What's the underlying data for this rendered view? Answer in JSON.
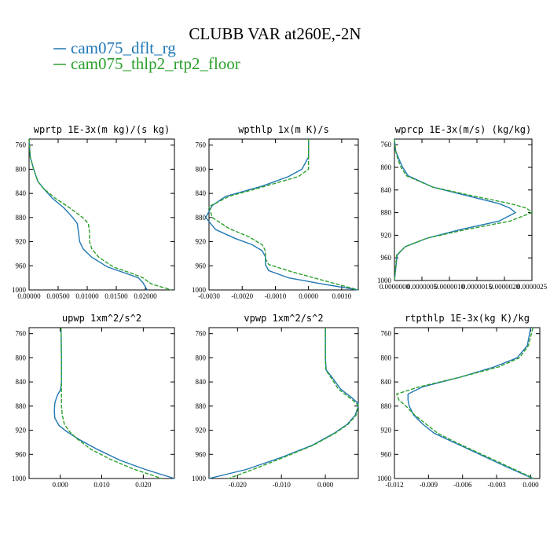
{
  "page": {
    "title": "CLUBB VAR at260E,-2N"
  },
  "legend": [
    {
      "label": "cam075_dflt_rg",
      "color": "#1f77b4",
      "dash": "solid"
    },
    {
      "label": "cam075_thlp2_rtp2_floor",
      "color": "#2ca02c",
      "dash": "dashed"
    }
  ],
  "chart_data": [
    {
      "type": "line",
      "title": "wprtp  1E-3x(m kg)/(s kg)",
      "xlim": [
        0,
        0.025
      ],
      "ylim": [
        1000,
        750
      ],
      "xticks": [
        0,
        0.005,
        0.01,
        0.015,
        0.02
      ],
      "xtick_labels": [
        "0.00000",
        "0.00500",
        "0.01000",
        "0.01500",
        "0.02000"
      ],
      "yticks": [
        760,
        800,
        840,
        880,
        920,
        960,
        1000
      ],
      "ytick_labels": [
        "760",
        "800",
        "840",
        "880",
        "920",
        "960",
        "1000"
      ],
      "series": [
        {
          "name": "cam075_dflt_rg",
          "color": "#1f77b4",
          "dash": "solid",
          "x": [
            0,
            0.0002,
            0.0008,
            0.0015,
            0.0025,
            0.004,
            0.006,
            0.0075,
            0.0083,
            0.0085,
            0.0087,
            0.0093,
            0.0108,
            0.0135,
            0.0165,
            0.0188,
            0.0196,
            0.0203
          ],
          "y": [
            750,
            780,
            800,
            820,
            832,
            848,
            864,
            880,
            890,
            905,
            920,
            932,
            946,
            962,
            972,
            980,
            988,
            1000
          ]
        },
        {
          "name": "cam075_thlp2_rtp2_floor",
          "color": "#2ca02c",
          "dash": "dashed",
          "x": [
            0,
            0.0002,
            0.0008,
            0.0015,
            0.0025,
            0.0045,
            0.007,
            0.0092,
            0.0102,
            0.0104,
            0.0104,
            0.0108,
            0.012,
            0.0145,
            0.0175,
            0.0196,
            0.021,
            0.0245
          ],
          "y": [
            750,
            780,
            800,
            820,
            832,
            848,
            864,
            880,
            890,
            905,
            920,
            932,
            946,
            962,
            972,
            980,
            990,
            1000
          ]
        }
      ]
    },
    {
      "type": "line",
      "title": "wpthlp  1x(m K)/s",
      "xlim": [
        -0.003,
        0.0015
      ],
      "ylim": [
        1000,
        750
      ],
      "xticks": [
        -0.003,
        -0.002,
        -0.001,
        0,
        0.001
      ],
      "xtick_labels": [
        "-0.0030",
        "-0.0020",
        "-0.0010",
        "0.0000",
        "0.0010"
      ],
      "yticks": [
        760,
        800,
        840,
        880,
        920,
        960,
        1000
      ],
      "ytick_labels": [
        "760",
        "800",
        "840",
        "880",
        "920",
        "960",
        "1000"
      ],
      "series": [
        {
          "name": "cam075_dflt_rg",
          "color": "#1f77b4",
          "dash": "solid",
          "x": [
            0,
            0,
            -0.0002,
            -0.0006,
            -0.0014,
            -0.0025,
            -0.0029,
            -0.0031,
            -0.0028,
            -0.0022,
            -0.0017,
            -0.0014,
            -0.0013,
            -0.0013,
            -0.0012,
            -0.0006,
            0.0004,
            0.0015
          ],
          "y": [
            750,
            780,
            800,
            812,
            828,
            845,
            860,
            880,
            900,
            915,
            925,
            935,
            945,
            958,
            968,
            980,
            990,
            1000
          ]
        },
        {
          "name": "cam075_thlp2_rtp2_floor",
          "color": "#2ca02c",
          "dash": "dashed",
          "x": [
            0,
            0,
            0,
            -0.0003,
            -0.0013,
            -0.0024,
            -0.003,
            -0.0029,
            -0.0024,
            -0.0018,
            -0.0014,
            -0.0013,
            -0.0013,
            -0.0012,
            -0.0005,
            0.0005,
            0.0015
          ],
          "y": [
            750,
            780,
            800,
            812,
            828,
            845,
            862,
            880,
            898,
            912,
            925,
            935,
            948,
            958,
            970,
            985,
            1000
          ]
        }
      ]
    },
    {
      "type": "line",
      "title": "wprcp  1E-3x(m/s) (kg/kg)",
      "xlim": [
        0,
        2.5e-06
      ],
      "ylim": [
        1000,
        750
      ],
      "xticks": [
        0,
        5e-07,
        1e-06,
        1.5e-06,
        2e-06,
        2.5e-06
      ],
      "xtick_labels": [
        "0.0000000",
        "0.0000005",
        "0.0000010",
        "0.0000015",
        "0.0000020",
        "0.0000025"
      ],
      "yticks": [
        760,
        800,
        840,
        880,
        920,
        960,
        1000
      ],
      "ytick_labels": [
        "760",
        "800",
        "840",
        "880",
        "920",
        "960",
        "1000"
      ],
      "series": [
        {
          "name": "cam075_dflt_rg",
          "color": "#1f77b4",
          "dash": "solid",
          "x": [
            0,
            2e-08,
            8e-08,
            1.5e-07,
            2.5e-07,
            7e-07,
            1.4e-06,
            1.9e-06,
            2.1e-06,
            2.2e-06,
            1.9e-06,
            1.2e-06,
            6e-07,
            2e-07,
            5e-08,
            0
          ],
          "y": [
            750,
            770,
            785,
            800,
            815,
            835,
            852,
            864,
            872,
            880,
            895,
            910,
            925,
            940,
            955,
            1000
          ]
        },
        {
          "name": "cam075_thlp2_rtp2_floor",
          "color": "#2ca02c",
          "dash": "dashed",
          "x": [
            0,
            2e-08,
            6e-08,
            1.2e-07,
            2.2e-07,
            7e-07,
            1.5e-06,
            2.1e-06,
            2.4e-06,
            2.5e-06,
            2.1e-06,
            1.3e-06,
            6e-07,
            2e-07,
            4e-08,
            0
          ],
          "y": [
            750,
            770,
            785,
            800,
            815,
            835,
            852,
            864,
            872,
            880,
            895,
            910,
            925,
            940,
            955,
            1000
          ]
        }
      ]
    },
    {
      "type": "line",
      "title": "upwp  1xm^2/s^2",
      "xlim": [
        -0.0075,
        0.0275
      ],
      "ylim": [
        1000,
        750
      ],
      "xticks": [
        0,
        0.01,
        0.02
      ],
      "xtick_labels": [
        "0.000",
        "0.010",
        "0.020"
      ],
      "yticks": [
        760,
        800,
        840,
        880,
        920,
        960,
        1000
      ],
      "ytick_labels": [
        "760",
        "800",
        "840",
        "880",
        "920",
        "960",
        "1000"
      ],
      "series": [
        {
          "name": "cam075_dflt_rg",
          "color": "#1f77b4",
          "dash": "solid",
          "x": [
            0.0002,
            0.0003,
            0.0003,
            0.0001,
            -0.0008,
            -0.0013,
            -0.0014,
            -0.0013,
            -0.0003,
            0.0015,
            0.0045,
            0.009,
            0.0145,
            0.0205,
            0.0275
          ],
          "y": [
            750,
            800,
            840,
            852,
            864,
            875,
            888,
            900,
            912,
            922,
            935,
            952,
            970,
            985,
            1000
          ]
        },
        {
          "name": "cam075_thlp2_rtp2_floor",
          "color": "#2ca02c",
          "dash": "dashed",
          "x": [
            0.0002,
            0.0003,
            0.0003,
            0.0003,
            0.0003,
            0.0005,
            0.001,
            0.0022,
            0.0042,
            0.0075,
            0.012,
            0.0175,
            0.0245
          ],
          "y": [
            750,
            800,
            840,
            860,
            880,
            895,
            910,
            922,
            935,
            952,
            968,
            984,
            1000
          ]
        }
      ]
    },
    {
      "type": "line",
      "title": "vpwp  1xm^2/s^2",
      "xlim": [
        -0.0265,
        0.0075
      ],
      "ylim": [
        1000,
        750
      ],
      "xticks": [
        -0.02,
        -0.01,
        0
      ],
      "xtick_labels": [
        "-0.020",
        "-0.010",
        "0.000"
      ],
      "yticks": [
        760,
        800,
        840,
        880,
        920,
        960,
        1000
      ],
      "ytick_labels": [
        "760",
        "800",
        "840",
        "880",
        "920",
        "960",
        "1000"
      ],
      "series": [
        {
          "name": "cam075_dflt_rg",
          "color": "#1f77b4",
          "dash": "solid",
          "x": [
            0,
            0,
            0.0002,
            0.0015,
            0.0035,
            0.006,
            0.0074,
            0.0075,
            0.0068,
            0.005,
            0.002,
            -0.003,
            -0.01,
            -0.018,
            -0.0265
          ],
          "y": [
            750,
            800,
            820,
            832,
            852,
            866,
            875,
            880,
            895,
            910,
            925,
            945,
            965,
            985,
            1000
          ]
        },
        {
          "name": "cam075_thlp2_rtp2_floor",
          "color": "#2ca02c",
          "dash": "dashed",
          "x": [
            0,
            0,
            0.0001,
            0.0012,
            0.003,
            0.0055,
            0.007,
            0.0075,
            0.007,
            0.0052,
            0.0022,
            -0.0028,
            -0.0095,
            -0.0165,
            -0.022
          ],
          "y": [
            750,
            800,
            820,
            832,
            852,
            866,
            875,
            880,
            895,
            910,
            925,
            945,
            965,
            985,
            1000
          ]
        }
      ]
    },
    {
      "type": "line",
      "title": "rtpthlp  1E-3x(kg K)/kg",
      "xlim": [
        -0.012,
        0.0008
      ],
      "ylim": [
        1000,
        750
      ],
      "xticks": [
        -0.012,
        -0.009,
        -0.006,
        -0.003,
        0
      ],
      "xtick_labels": [
        "-0.012",
        "-0.009",
        "-0.006",
        "-0.003",
        "0.000"
      ],
      "yticks": [
        760,
        800,
        840,
        880,
        920,
        960,
        1000
      ],
      "ytick_labels": [
        "760",
        "800",
        "840",
        "880",
        "920",
        "960",
        "1000"
      ],
      "series": [
        {
          "name": "cam075_dflt_rg",
          "color": "#1f77b4",
          "dash": "solid",
          "x": [
            0,
            -0.0003,
            -0.0012,
            -0.0032,
            -0.0062,
            -0.0095,
            -0.0108,
            -0.0108,
            -0.0107,
            -0.0103,
            -0.0095,
            -0.0085,
            -0.0068,
            -0.0045,
            -0.0022,
            0.0002
          ],
          "y": [
            750,
            780,
            800,
            815,
            832,
            848,
            860,
            870,
            880,
            895,
            910,
            925,
            940,
            960,
            980,
            1000
          ]
        },
        {
          "name": "cam075_thlp2_rtp2_floor",
          "color": "#2ca02c",
          "dash": "dashed",
          "x": [
            0.0002,
            -0.0002,
            -0.001,
            -0.0028,
            -0.0062,
            -0.0098,
            -0.0118,
            -0.0116,
            -0.011,
            -0.0102,
            -0.0092,
            -0.0082,
            -0.0066,
            -0.0043,
            -0.002,
            0.0003
          ],
          "y": [
            750,
            780,
            800,
            815,
            832,
            848,
            860,
            870,
            880,
            895,
            910,
            925,
            940,
            960,
            980,
            1000
          ]
        }
      ]
    }
  ]
}
